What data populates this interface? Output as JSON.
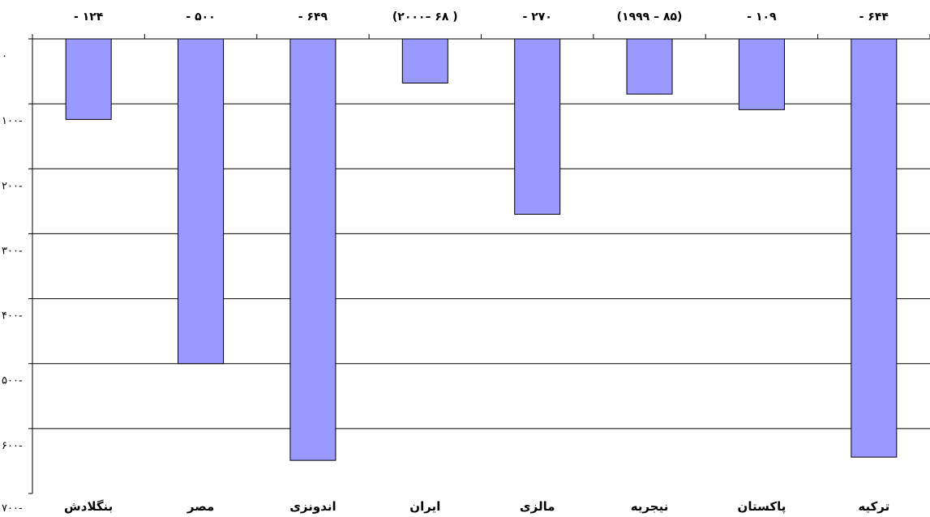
{
  "chart_data": {
    "type": "bar",
    "categories": [
      "بنگلادش",
      "مصر",
      "اندونزی",
      "ایران",
      "مالزی",
      "نیجریه",
      "پاکستان",
      "ترکیه"
    ],
    "values": [
      -124,
      -500,
      -649,
      -68,
      -270,
      -85,
      -109,
      -644
    ],
    "value_labels": [
      "- ۱۲۴",
      "- ۵۰۰",
      "- ۶۴۹",
      "(۲۰۰۰– ۶۸ )",
      "- ۲۷۰",
      "(۱۹۹۹ – ۸۵)",
      "- ۱۰۹",
      "- ۶۴۴"
    ],
    "y_tick_values": [
      0,
      -100,
      -200,
      -300,
      -400,
      -500,
      -600,
      -700
    ],
    "y_tick_labels": [
      "۰",
      "۱۰۰-",
      "۲۰۰-",
      "۳۰۰-",
      "۴۰۰-",
      "۵۰۰-",
      "۶۰۰-",
      "۷۰۰-"
    ],
    "ylim": [
      -700,
      0
    ],
    "grid": true,
    "bar_color": "#9999ff",
    "title": "",
    "xlabel": "",
    "ylabel": ""
  }
}
